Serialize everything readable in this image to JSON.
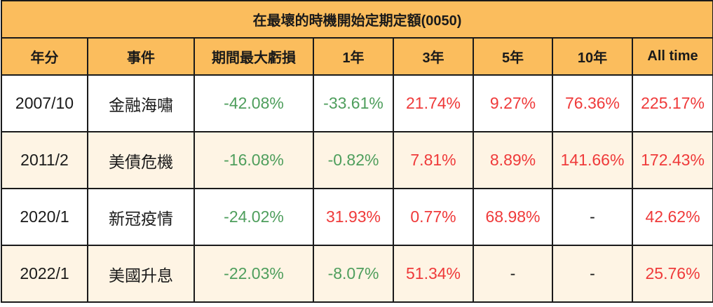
{
  "table": {
    "title": "在最壞的時機開始定期定額(0050)",
    "columns": [
      "年分",
      "事件",
      "期間最大虧損",
      "1年",
      "3年",
      "5年",
      "10年",
      "All time"
    ],
    "rows": [
      {
        "cells": [
          "2007/10",
          "金融海嘯",
          "-42.08%",
          "-33.61%",
          "21.74%",
          "9.27%",
          "76.36%",
          "225.17%"
        ]
      },
      {
        "cells": [
          "2011/2",
          "美債危機",
          "-16.08%",
          "-0.82%",
          "7.81%",
          "8.89%",
          "141.66%",
          "172.43%"
        ]
      },
      {
        "cells": [
          "2020/1",
          "新冠疫情",
          "-24.02%",
          "31.93%",
          "0.77%",
          "68.98%",
          "-",
          "42.62%"
        ]
      },
      {
        "cells": [
          "2022/1",
          "美國升息",
          "-22.03%",
          "-8.07%",
          "51.34%",
          "-",
          "-",
          "25.76%"
        ]
      }
    ]
  },
  "colors": {
    "header_bg": "#fbbd5d",
    "row_alt_bg": "#fef4e4",
    "negative": "#4e9e5c",
    "positive": "#ef3a3a"
  }
}
